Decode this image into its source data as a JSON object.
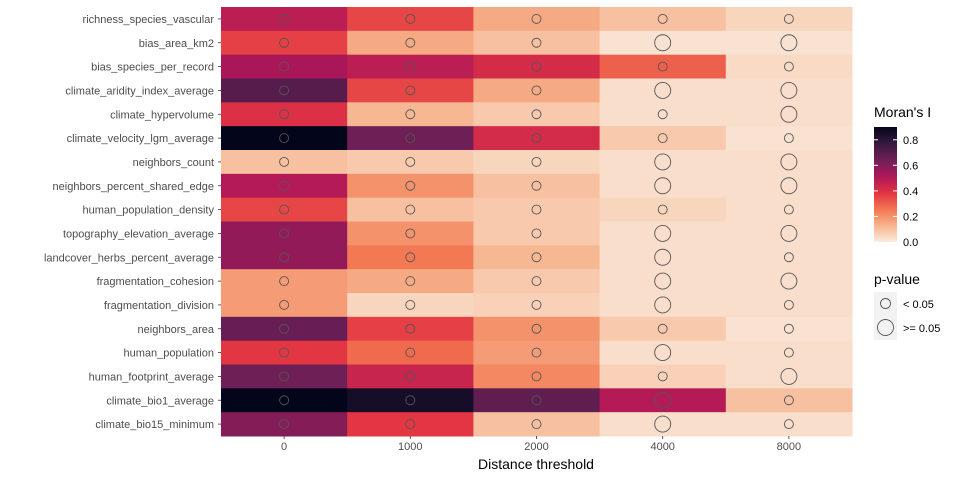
{
  "chart_data": {
    "type": "heatmap",
    "xlabel": "Distance threshold",
    "ylabel": "",
    "x": [
      "0",
      "1000",
      "2000",
      "4000",
      "8000"
    ],
    "y": [
      "richness_species_vascular",
      "bias_area_km2",
      "bias_species_per_record",
      "climate_aridity_index_average",
      "climate_hypervolume",
      "climate_velocity_lgm_average",
      "neighbors_count",
      "neighbors_percent_shared_edge",
      "human_population_density",
      "topography_elevation_average",
      "landcover_herbs_percent_average",
      "fragmentation_cohesion",
      "fragmentation_division",
      "neighbors_area",
      "human_population",
      "human_footprint_average",
      "climate_bio1_average",
      "climate_bio15_minimum"
    ],
    "values": [
      [
        0.48,
        0.35,
        0.15,
        0.1,
        0.05
      ],
      [
        0.36,
        0.15,
        0.1,
        0.02,
        0.02
      ],
      [
        0.52,
        0.48,
        0.42,
        0.3,
        0.04
      ],
      [
        0.7,
        0.35,
        0.15,
        0.03,
        0.03
      ],
      [
        0.4,
        0.12,
        0.08,
        0.03,
        0.03
      ],
      [
        0.9,
        0.65,
        0.42,
        0.08,
        0.02
      ],
      [
        0.1,
        0.08,
        0.05,
        0.03,
        0.03
      ],
      [
        0.5,
        0.2,
        0.1,
        0.03,
        0.03
      ],
      [
        0.35,
        0.1,
        0.08,
        0.05,
        0.03
      ],
      [
        0.57,
        0.2,
        0.08,
        0.03,
        0.03
      ],
      [
        0.57,
        0.25,
        0.12,
        0.03,
        0.03
      ],
      [
        0.18,
        0.15,
        0.08,
        0.03,
        0.03
      ],
      [
        0.18,
        0.05,
        0.06,
        0.03,
        0.03
      ],
      [
        0.66,
        0.36,
        0.2,
        0.08,
        0.02
      ],
      [
        0.38,
        0.28,
        0.18,
        0.03,
        0.03
      ],
      [
        0.65,
        0.45,
        0.22,
        0.06,
        0.03
      ],
      [
        0.98,
        0.85,
        0.68,
        0.5,
        0.1
      ],
      [
        0.6,
        0.38,
        0.1,
        0.03,
        0.03
      ]
    ],
    "pvalue_significant": [
      [
        true,
        true,
        true,
        true,
        true
      ],
      [
        true,
        true,
        true,
        false,
        false
      ],
      [
        true,
        true,
        true,
        true,
        true
      ],
      [
        true,
        true,
        true,
        false,
        false
      ],
      [
        true,
        true,
        true,
        true,
        false
      ],
      [
        true,
        true,
        true,
        true,
        true
      ],
      [
        true,
        true,
        true,
        false,
        false
      ],
      [
        true,
        true,
        true,
        false,
        false
      ],
      [
        true,
        true,
        true,
        true,
        true
      ],
      [
        true,
        true,
        true,
        false,
        false
      ],
      [
        true,
        true,
        true,
        false,
        true
      ],
      [
        true,
        true,
        true,
        false,
        false
      ],
      [
        true,
        true,
        true,
        false,
        true
      ],
      [
        true,
        true,
        true,
        true,
        true
      ],
      [
        true,
        true,
        true,
        false,
        true
      ],
      [
        true,
        true,
        true,
        true,
        false
      ],
      [
        true,
        true,
        true,
        false,
        true
      ],
      [
        true,
        true,
        true,
        false,
        true
      ]
    ],
    "color_legend": {
      "title": "Moran's I",
      "ticks": [
        "0.0",
        "0.2",
        "0.4",
        "0.6",
        "0.8"
      ],
      "range": [
        0,
        0.9
      ],
      "colormap": [
        "#FAEBDD",
        "#F6B48E",
        "#F37651",
        "#E13342",
        "#AD1759",
        "#701F57",
        "#35193E",
        "#03051A"
      ]
    },
    "size_legend": {
      "title": "p-value",
      "labels": [
        "< 0.05",
        ">= 0.05"
      ]
    },
    "grid": false,
    "legend_position": "right"
  }
}
